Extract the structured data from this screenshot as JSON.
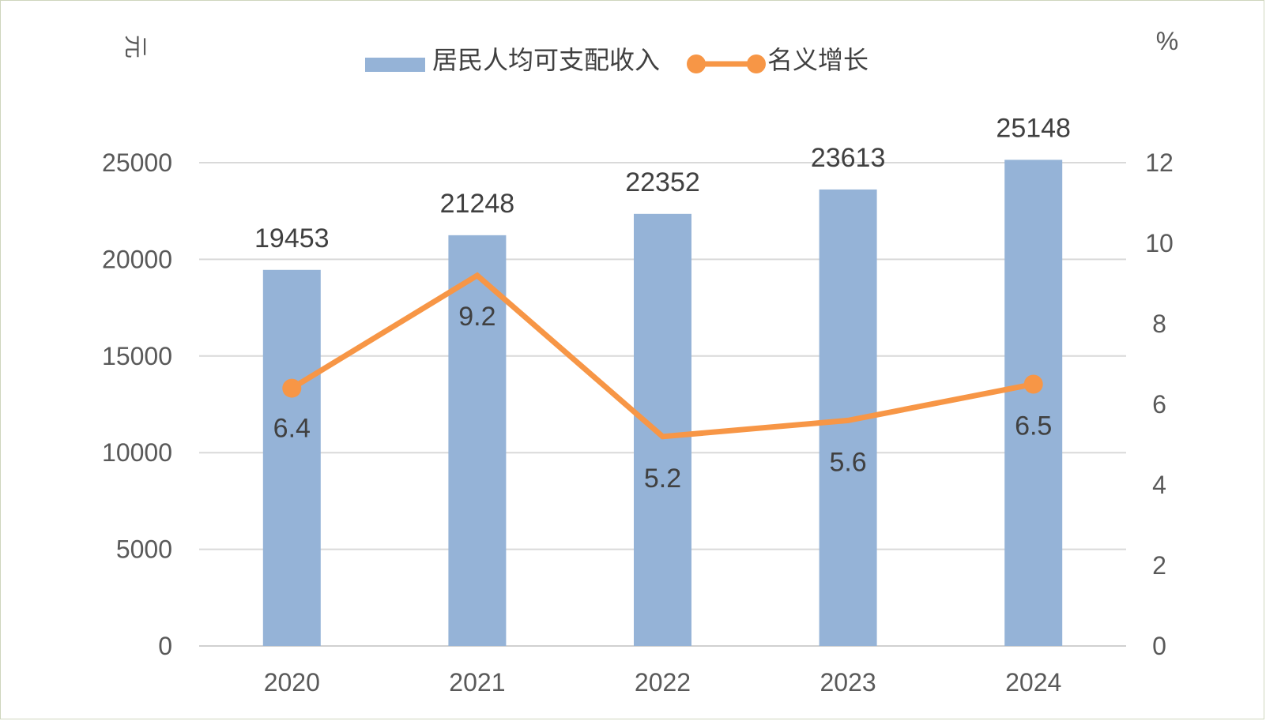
{
  "chart_data": {
    "type": "bar",
    "categories": [
      "2020",
      "2021",
      "2022",
      "2023",
      "2024"
    ],
    "series": [
      {
        "name": "居民人均可支配收入",
        "type": "bar",
        "axis": "left",
        "values": [
          19453,
          21248,
          22352,
          23613,
          25148
        ],
        "color": "#95b3d7"
      },
      {
        "name": "名义增长",
        "type": "line",
        "axis": "right",
        "values": [
          6.4,
          9.2,
          5.2,
          5.6,
          6.5
        ],
        "color": "#f79646"
      }
    ],
    "y_left": {
      "unit": "元",
      "ticks": [
        "0",
        "5000",
        "10000",
        "15000",
        "20000",
        "25000"
      ],
      "ylim": [
        0,
        25000
      ]
    },
    "y_right": {
      "unit": "%",
      "ticks": [
        "0",
        "2",
        "4",
        "6",
        "8",
        "10",
        "12"
      ],
      "ylim": [
        0,
        12
      ]
    },
    "grid": true,
    "legend": "top"
  }
}
